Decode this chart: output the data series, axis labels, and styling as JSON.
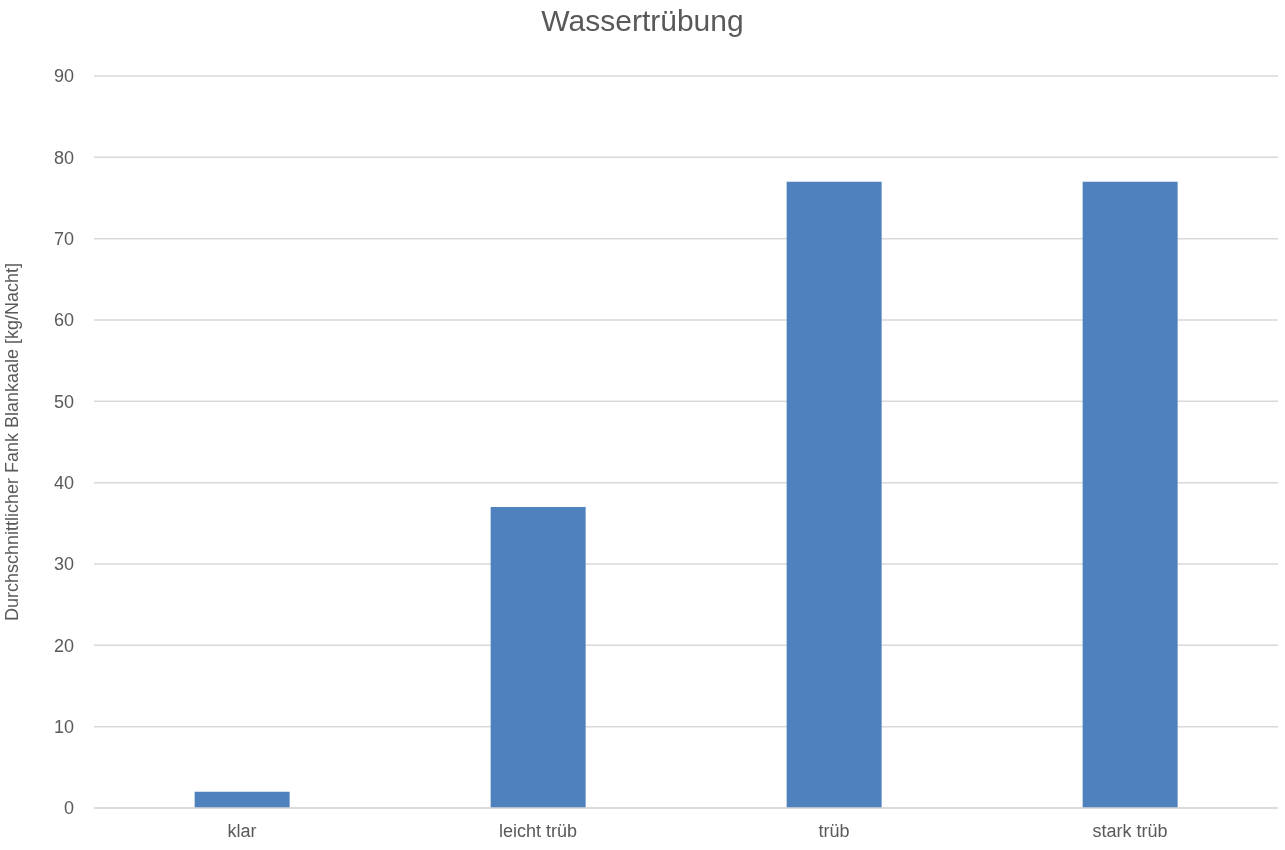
{
  "chart_data": {
    "type": "bar",
    "title": "Wassertrübung",
    "ylabel": "Durchschnittlicher Fank Blankaale [kg/Nacht]",
    "categories": [
      "klar",
      "leicht trüb",
      "trüb",
      "stark trüb"
    ],
    "values": [
      2,
      37,
      77,
      77
    ],
    "color": "#4f81bd",
    "ylim": [
      0,
      90
    ],
    "yticks": [
      0,
      10,
      20,
      30,
      40,
      50,
      60,
      70,
      80,
      90
    ],
    "grid": "y"
  }
}
